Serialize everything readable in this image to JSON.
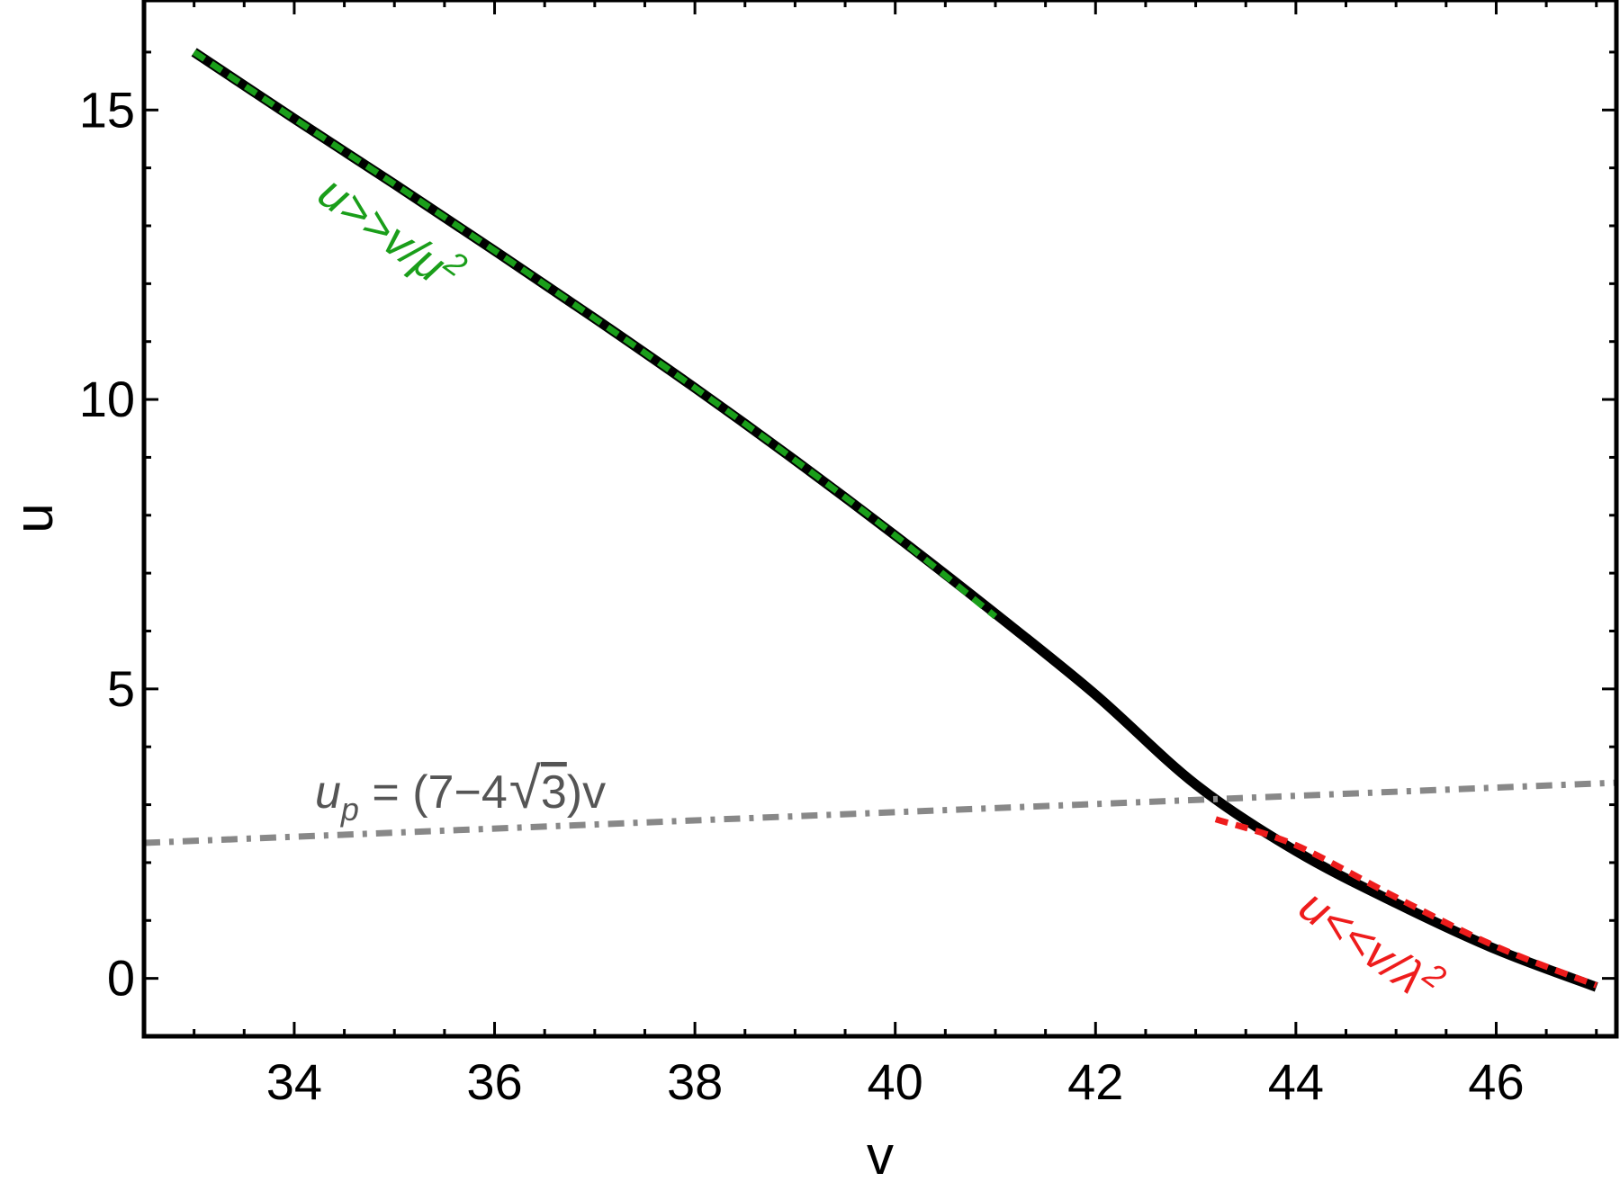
{
  "chart_data": {
    "type": "line",
    "xlabel": "v",
    "ylabel": "u",
    "xlim": [
      32.5,
      47.2
    ],
    "ylim": [
      -1.0,
      16.9
    ],
    "xticks": [
      34,
      36,
      38,
      40,
      42,
      44,
      46
    ],
    "yticks": [
      0,
      5,
      10,
      15
    ],
    "grid": false,
    "series": [
      {
        "color": "#000000",
        "style": "solid",
        "x": [
          33,
          34,
          35,
          36,
          37,
          38,
          39,
          40,
          41,
          42,
          43,
          44,
          45,
          46,
          47
        ],
        "y": [
          16.0,
          14.85,
          13.72,
          12.57,
          11.4,
          10.2,
          8.95,
          7.65,
          6.3,
          4.9,
          3.35,
          2.2,
          1.3,
          0.5,
          -0.15
        ]
      },
      {
        "color": "#1a9e1a",
        "style": "dashed",
        "x": [
          33,
          34,
          35,
          36,
          37,
          38,
          39,
          40,
          41
        ],
        "y": [
          16.0,
          14.85,
          13.72,
          12.57,
          11.4,
          10.2,
          8.95,
          7.65,
          6.25
        ]
      },
      {
        "color": "#ee1c1c",
        "style": "dashed",
        "x": [
          43.2,
          44,
          45,
          46,
          47
        ],
        "y": [
          2.75,
          2.3,
          1.4,
          0.55,
          -0.12
        ]
      },
      {
        "color": "#888888",
        "style": "dash-dot",
        "x": [
          32.5,
          47.2
        ],
        "y": [
          2.34,
          3.38
        ]
      }
    ],
    "annotations": {
      "green": {
        "parts": [
          "u>>v/μ",
          "2"
        ],
        "color": "#1a9e1a"
      },
      "red": {
        "parts": [
          "u<<v/λ",
          "2"
        ],
        "color": "#ee1c1c"
      },
      "gray": {
        "parts": [
          "u",
          "p",
          " = (7−4",
          "√",
          "3",
          ")v"
        ],
        "color": "#555555"
      }
    }
  }
}
